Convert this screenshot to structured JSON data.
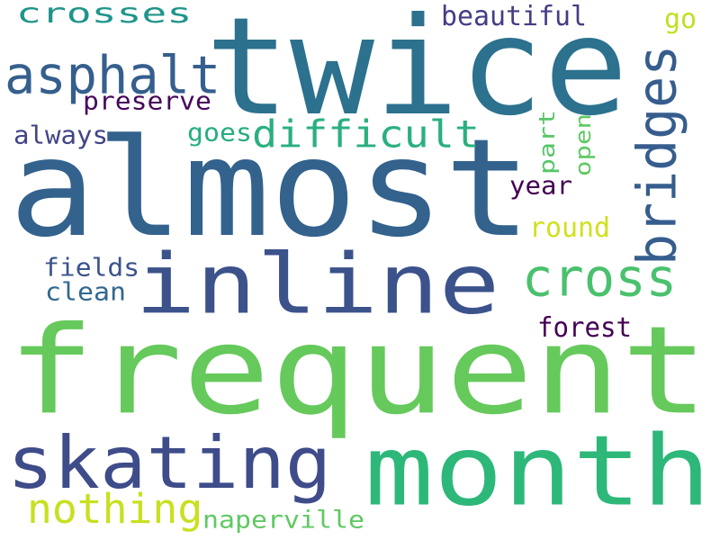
{
  "words": [
    {
      "text": "frequent",
      "color": "#66c95c",
      "vertical": false
    },
    {
      "text": "almost",
      "color": "#33628d",
      "vertical": false
    },
    {
      "text": "twice",
      "color": "#2c718e",
      "vertical": false
    },
    {
      "text": "month",
      "color": "#2db87a",
      "vertical": false
    },
    {
      "text": "inline",
      "color": "#3b528b",
      "vertical": false
    },
    {
      "text": "skating",
      "color": "#3e4c8a",
      "vertical": false
    },
    {
      "text": "bridges",
      "color": "#365d8d",
      "vertical": true
    },
    {
      "text": "cross",
      "color": "#4ac16d",
      "vertical": false
    },
    {
      "text": "asphalt",
      "color": "#355f8d",
      "vertical": false
    },
    {
      "text": "crosses",
      "color": "#1f958b",
      "vertical": false
    },
    {
      "text": "difficult",
      "color": "#2ab07f",
      "vertical": false
    },
    {
      "text": "nothing",
      "color": "#c8e020",
      "vertical": false
    },
    {
      "text": "beautiful",
      "color": "#433e85",
      "vertical": false
    },
    {
      "text": "preserve",
      "color": "#46085c",
      "vertical": false
    },
    {
      "text": "always",
      "color": "#414487",
      "vertical": false
    },
    {
      "text": "goes",
      "color": "#26ad81",
      "vertical": false
    },
    {
      "text": "part",
      "color": "#56c667",
      "vertical": true
    },
    {
      "text": "open",
      "color": "#5ec962",
      "vertical": true
    },
    {
      "text": "year",
      "color": "#440154",
      "vertical": false
    },
    {
      "text": "round",
      "color": "#d0e11c",
      "vertical": false
    },
    {
      "text": "fields",
      "color": "#3b528b",
      "vertical": false
    },
    {
      "text": "clean",
      "color": "#31688e",
      "vertical": false
    },
    {
      "text": "forest",
      "color": "#440154",
      "vertical": false
    },
    {
      "text": "naperville",
      "color": "#5ec962",
      "vertical": false
    },
    {
      "text": "go",
      "color": "#c2df23",
      "vertical": false
    }
  ]
}
